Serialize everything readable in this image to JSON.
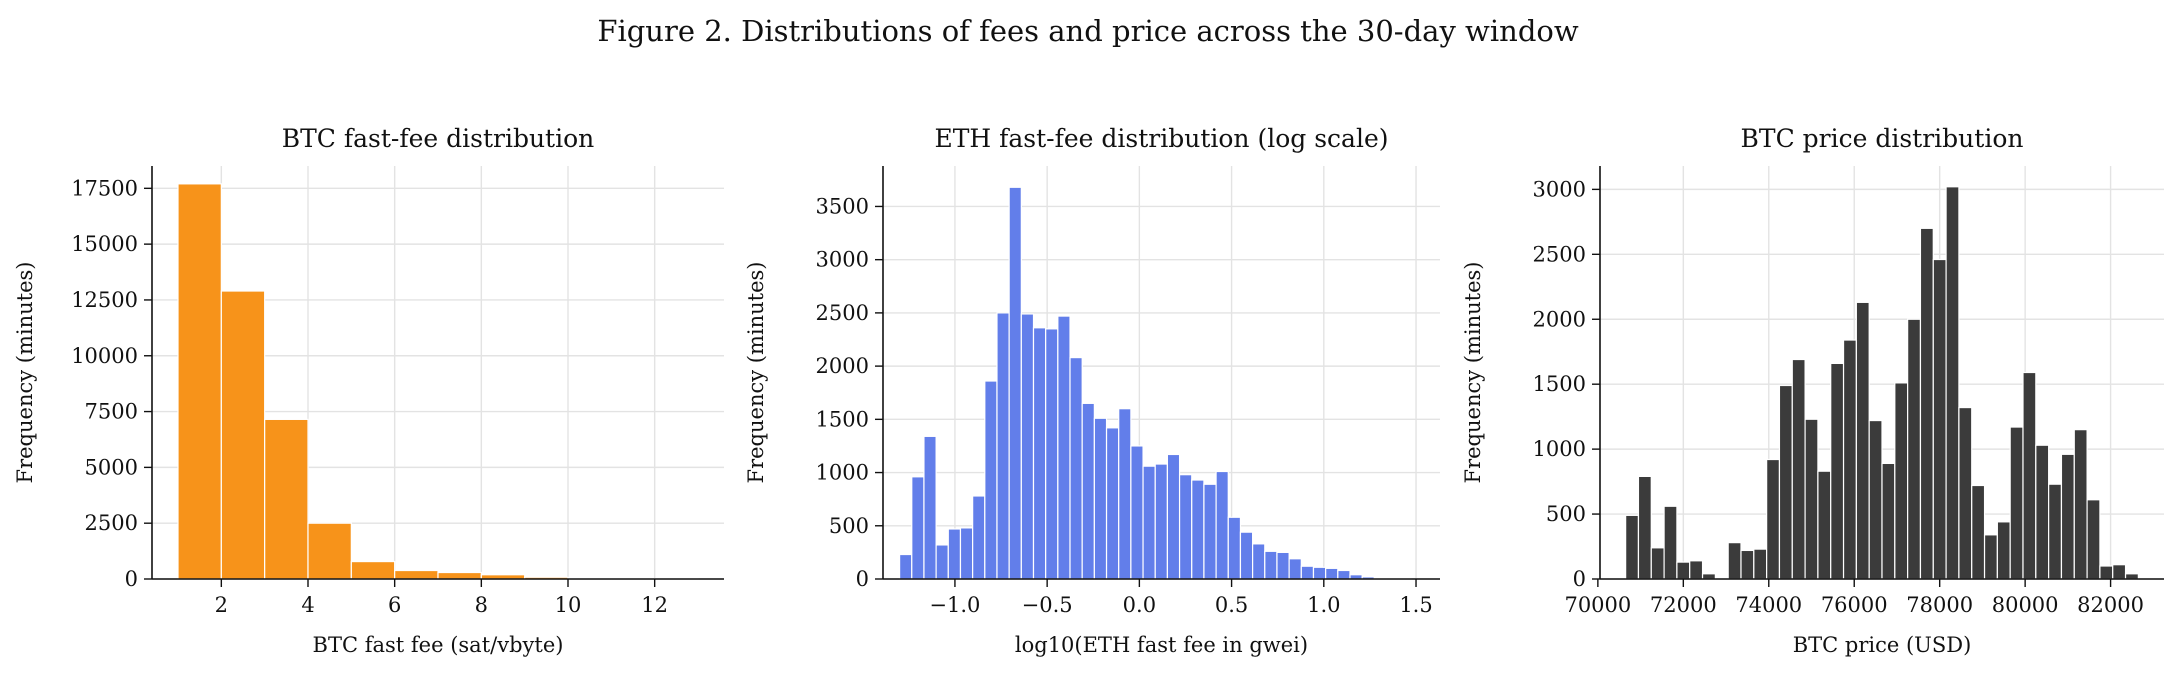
{
  "suptitle": "Figure 2. Distributions of fees and price across the 30-day window",
  "chart_data": [
    {
      "type": "bar",
      "title": "BTC fast-fee distribution",
      "xlabel": "BTC fast fee (sat/vbyte)",
      "ylabel": "Frequency (minutes)",
      "color": "#f7931a",
      "xlim": [
        0.4,
        13.6
      ],
      "ylim": [
        0,
        18500
      ],
      "xticks": [
        2,
        4,
        6,
        8,
        10,
        12
      ],
      "yticks": [
        0,
        2500,
        5000,
        7500,
        10000,
        12500,
        15000,
        17500
      ],
      "bin_edges": [
        1,
        2,
        3,
        4,
        5,
        6,
        7,
        8,
        9,
        10,
        11,
        12,
        13
      ],
      "values": [
        17700,
        12900,
        7150,
        2500,
        780,
        380,
        290,
        190,
        80,
        40,
        20,
        10
      ]
    },
    {
      "type": "bar",
      "title": "ETH fast-fee distribution (log scale)",
      "xlabel": "log10(ETH fast fee in gwei)",
      "ylabel": "Frequency (minutes)",
      "color": "#627eea",
      "xlim": [
        -1.39,
        1.63
      ],
      "ylim": [
        0,
        3880
      ],
      "xticks": [
        -1.0,
        -0.5,
        0.0,
        0.5,
        1.0,
        1.5
      ],
      "yticks": [
        0,
        500,
        1000,
        1500,
        2000,
        2500,
        3000,
        3500
      ],
      "bin_edges": [
        -1.3,
        -1.234,
        -1.168,
        -1.102,
        -1.036,
        -0.97,
        -0.904,
        -0.838,
        -0.772,
        -0.706,
        -0.64,
        -0.574,
        -0.508,
        -0.442,
        -0.376,
        -0.31,
        -0.244,
        -0.178,
        -0.112,
        -0.046,
        0.02,
        0.086,
        0.152,
        0.218,
        0.284,
        0.35,
        0.416,
        0.482,
        0.548,
        0.614,
        0.68,
        0.746,
        0.812,
        0.878,
        0.944,
        1.01,
        1.076,
        1.142,
        1.208,
        1.274,
        1.34,
        1.406,
        1.472,
        1.538
      ],
      "values": [
        230,
        960,
        1340,
        320,
        470,
        480,
        780,
        1860,
        2500,
        3680,
        2490,
        2360,
        2350,
        2470,
        2080,
        1650,
        1510,
        1420,
        1600,
        1250,
        1060,
        1080,
        1170,
        980,
        930,
        890,
        1010,
        580,
        440,
        330,
        260,
        250,
        190,
        120,
        110,
        100,
        80,
        40,
        20,
        10,
        5,
        3,
        0
      ]
    },
    {
      "type": "bar",
      "title": "BTC price distribution",
      "xlabel": "BTC price (USD)",
      "ylabel": "Frequency (minutes)",
      "color": "#3b3b3b",
      "xlim": [
        70050,
        83250
      ],
      "ylim": [
        0,
        3180
      ],
      "xticks": [
        70000,
        72000,
        74000,
        76000,
        78000,
        80000,
        82000
      ],
      "yticks": [
        0,
        500,
        1000,
        1500,
        2000,
        2500,
        3000
      ],
      "bin_edges": [
        70650,
        70950,
        71250,
        71550,
        71850,
        72150,
        72450,
        72750,
        73050,
        73350,
        73650,
        73950,
        74250,
        74550,
        74850,
        75150,
        75450,
        75750,
        76050,
        76350,
        76650,
        76950,
        77250,
        77550,
        77850,
        78150,
        78450,
        78750,
        79050,
        79350,
        79650,
        79950,
        80250,
        80550,
        80850,
        81150,
        81450,
        81750,
        82050,
        82350,
        82650
      ],
      "values": [
        490,
        790,
        240,
        560,
        130,
        140,
        40,
        0,
        280,
        220,
        230,
        920,
        1490,
        1690,
        1230,
        830,
        1660,
        1840,
        2130,
        1220,
        890,
        1510,
        2000,
        2700,
        2460,
        3020,
        1320,
        720,
        340,
        440,
        1170,
        1590,
        1030,
        730,
        960,
        1150,
        610,
        100,
        110,
        40
      ]
    }
  ]
}
